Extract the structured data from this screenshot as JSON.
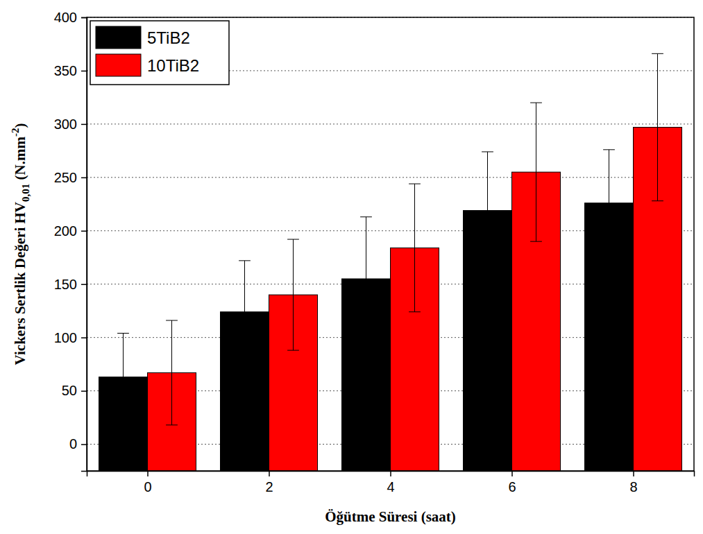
{
  "chart_data": {
    "type": "bar",
    "xlabel": "Öğütme Süresi (saat)",
    "ylabel_parts": [
      "Vickers Sertlik Değeri HV",
      "0,01",
      " (N.mm",
      "-2",
      ")"
    ],
    "x": [
      0,
      2,
      4,
      6,
      8
    ],
    "xlim": [
      -1,
      9
    ],
    "xticks": [
      0,
      2,
      4,
      6,
      8
    ],
    "ylim": [
      -25,
      400
    ],
    "yticks": [
      0,
      50,
      100,
      150,
      200,
      250,
      300,
      350,
      400
    ],
    "grid": true,
    "legend": "upper left",
    "series": [
      {
        "name": "5TiB2",
        "color": "#000000",
        "values": [
          63,
          124,
          155,
          219,
          226
        ],
        "errors": [
          41,
          48,
          58,
          55,
          50
        ]
      },
      {
        "name": "10TiB2",
        "color": "#ff0000",
        "values": [
          67,
          140,
          184,
          255,
          297
        ],
        "errors": [
          49,
          52,
          60,
          65,
          69
        ]
      }
    ]
  }
}
